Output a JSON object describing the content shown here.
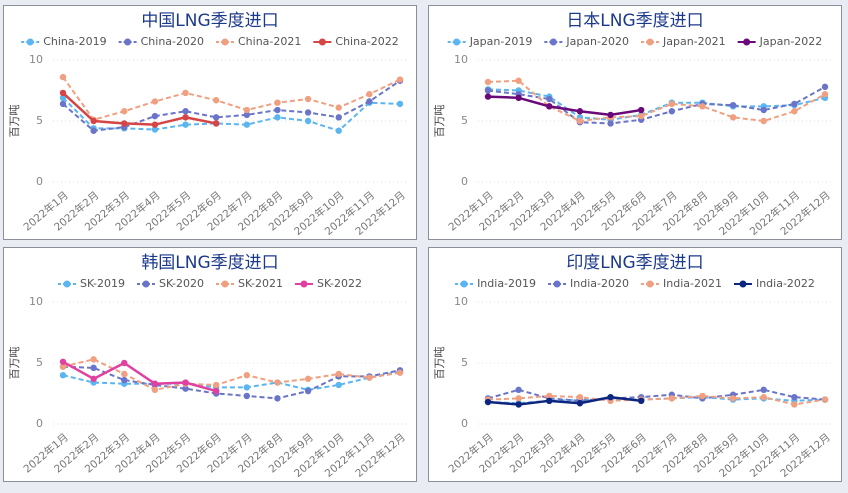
{
  "chart_data": [
    {
      "type": "line",
      "title": "中国LNG季度进口",
      "y_label": "百万吨",
      "categories": [
        "2022年1月",
        "2022年2月",
        "2022年3月",
        "2022年4月",
        "2022年5月",
        "2022年6月",
        "2022年7月",
        "2022年8月",
        "2022年9月",
        "2022年10月",
        "2022年11月",
        "2022年12月"
      ],
      "ylim": [
        0,
        10
      ],
      "yticks": [
        0,
        5,
        10
      ],
      "grid": true,
      "series": [
        {
          "name": "China-2019",
          "color": "#5bb5f0",
          "dashed": true,
          "values": [
            6.9,
            4.4,
            4.4,
            4.3,
            4.7,
            4.8,
            4.7,
            5.3,
            5.0,
            4.2,
            6.5,
            6.4
          ]
        },
        {
          "name": "China-2020",
          "color": "#6a74c8",
          "dashed": true,
          "values": [
            6.4,
            4.2,
            4.5,
            5.4,
            5.8,
            5.3,
            5.5,
            5.9,
            5.7,
            5.3,
            6.6,
            8.3
          ]
        },
        {
          "name": "China-2021",
          "color": "#f0a080",
          "dashed": true,
          "values": [
            8.6,
            5.1,
            5.8,
            6.6,
            7.3,
            6.7,
            5.9,
            6.5,
            6.8,
            6.1,
            7.2,
            8.4
          ]
        },
        {
          "name": "China-2022",
          "color": "#d64545",
          "dashed": false,
          "values": [
            7.3,
            5.0,
            4.8,
            4.7,
            5.3,
            4.8,
            null,
            null,
            null,
            null,
            null,
            null
          ]
        }
      ]
    },
    {
      "type": "line",
      "title": "日本LNG季度进口",
      "y_label": "百万吨",
      "categories": [
        "2022年1月",
        "2022年2月",
        "2022年3月",
        "2022年4月",
        "2022年5月",
        "2022年6月",
        "2022年7月",
        "2022年8月",
        "2022年9月",
        "2022年10月",
        "2022年11月",
        "2022年12月"
      ],
      "ylim": [
        0,
        10
      ],
      "yticks": [
        0,
        5,
        10
      ],
      "grid": true,
      "series": [
        {
          "name": "Japan-2019",
          "color": "#5bb5f0",
          "dashed": true,
          "values": [
            7.6,
            7.5,
            7.0,
            5.3,
            5.1,
            5.5,
            6.5,
            6.5,
            6.2,
            6.2,
            6.3,
            6.9
          ]
        },
        {
          "name": "Japan-2020",
          "color": "#6a74c8",
          "dashed": true,
          "values": [
            7.5,
            7.2,
            6.8,
            4.9,
            4.8,
            5.1,
            5.8,
            6.4,
            6.3,
            5.9,
            6.4,
            7.8
          ]
        },
        {
          "name": "Japan-2021",
          "color": "#f0a080",
          "dashed": true,
          "values": [
            8.2,
            8.3,
            6.2,
            5.0,
            5.3,
            5.4,
            6.4,
            6.2,
            5.3,
            5.0,
            5.8,
            7.2
          ]
        },
        {
          "name": "Japan-2022",
          "color": "#6a0a78",
          "dashed": false,
          "values": [
            7.0,
            6.9,
            6.2,
            5.8,
            5.5,
            5.9,
            null,
            null,
            null,
            null,
            null,
            null
          ]
        }
      ]
    },
    {
      "type": "line",
      "title": "韩国LNG季度进口",
      "y_label": "百万吨",
      "categories": [
        "2022年1月",
        "2022年2月",
        "2022年3月",
        "2022年4月",
        "2022年5月",
        "2022年6月",
        "2022年7月",
        "2022年8月",
        "2022年9月",
        "2022年10月",
        "2022年11月",
        "2022年12月"
      ],
      "ylim": [
        0,
        10
      ],
      "yticks": [
        0,
        5,
        10
      ],
      "grid": true,
      "series": [
        {
          "name": "SK-2019",
          "color": "#5bb5f0",
          "dashed": true,
          "values": [
            4.0,
            3.4,
            3.3,
            3.3,
            3.3,
            3.0,
            3.0,
            3.4,
            2.8,
            3.2,
            3.8,
            4.3
          ]
        },
        {
          "name": "SK-2020",
          "color": "#6a74c8",
          "dashed": true,
          "values": [
            4.7,
            4.6,
            3.6,
            3.2,
            2.9,
            2.5,
            2.3,
            2.1,
            2.7,
            3.9,
            3.9,
            4.4
          ]
        },
        {
          "name": "SK-2021",
          "color": "#f0a080",
          "dashed": true,
          "values": [
            4.7,
            5.3,
            4.1,
            2.8,
            3.3,
            3.2,
            4.0,
            3.4,
            3.7,
            4.1,
            3.8,
            4.2
          ]
        },
        {
          "name": "SK-2022",
          "color": "#e040a0",
          "dashed": false,
          "values": [
            5.1,
            3.7,
            5.0,
            3.3,
            3.4,
            2.7,
            null,
            null,
            null,
            null,
            null,
            null
          ]
        }
      ]
    },
    {
      "type": "line",
      "title": "印度LNG季度进口",
      "y_label": "百万吨",
      "categories": [
        "2022年1月",
        "2022年2月",
        "2022年3月",
        "2022年4月",
        "2022年5月",
        "2022年6月",
        "2022年7月",
        "2022年8月",
        "2022年9月",
        "2022年10月",
        "2022年11月",
        "2022年12月"
      ],
      "ylim": [
        0,
        10
      ],
      "yticks": [
        0,
        5,
        10
      ],
      "grid": true,
      "series": [
        {
          "name": "India-2019",
          "color": "#5bb5f0",
          "dashed": true,
          "values": [
            1.8,
            1.7,
            1.9,
            2.0,
            2.0,
            2.0,
            2.1,
            2.2,
            2.0,
            2.1,
            1.9,
            2.0
          ]
        },
        {
          "name": "India-2020",
          "color": "#6a74c8",
          "dashed": true,
          "values": [
            2.1,
            2.8,
            2.1,
            1.9,
            2.1,
            2.2,
            2.4,
            2.1,
            2.4,
            2.8,
            2.2,
            2.0
          ]
        },
        {
          "name": "India-2021",
          "color": "#f0a080",
          "dashed": true,
          "values": [
            2.0,
            2.1,
            2.3,
            2.2,
            1.9,
            2.0,
            2.1,
            2.3,
            2.1,
            2.2,
            1.6,
            2.0
          ]
        },
        {
          "name": "India-2022",
          "color": "#0d2680",
          "dashed": false,
          "values": [
            1.8,
            1.6,
            1.9,
            1.7,
            2.2,
            1.9,
            null,
            null,
            null,
            null,
            null,
            null
          ]
        }
      ]
    }
  ]
}
